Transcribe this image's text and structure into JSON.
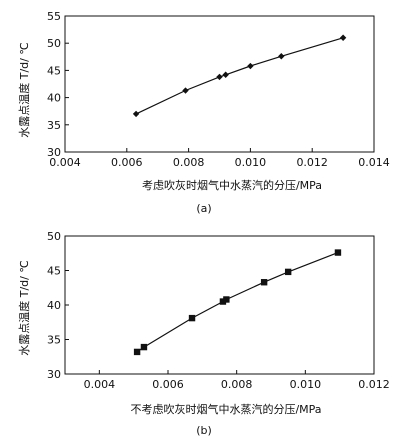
{
  "chart_data": [
    {
      "type": "line",
      "panel_label": "(a)",
      "xlabel": "考虑吹灰时烟气中水蒸汽的分压/MPa",
      "ylabel": "水露点温度 T/d/ ℃",
      "xlim": [
        0.004,
        0.014
      ],
      "ylim": [
        30,
        55
      ],
      "xticks": [
        "0.004",
        "0.006",
        "0.008",
        "0.010",
        "0.012",
        "0.014"
      ],
      "yticks": [
        "30",
        "35",
        "40",
        "45",
        "50",
        "55"
      ],
      "marker": "diamond",
      "series": [
        {
          "x": [
            0.0063,
            0.0079,
            0.009,
            0.0092,
            0.01,
            0.011,
            0.013
          ],
          "y": [
            37.0,
            41.3,
            43.8,
            44.2,
            45.8,
            47.6,
            51.0
          ]
        }
      ]
    },
    {
      "type": "line",
      "panel_label": "(b)",
      "xlabel": "不考虑吹灰时烟气中水蒸汽的分压/MPa",
      "ylabel": "水露点温度 T/d/ ℃",
      "xlim": [
        0.003,
        0.012
      ],
      "ylim": [
        30,
        50
      ],
      "xticks": [
        "0.004",
        "0.006",
        "0.008",
        "0.010",
        "0.012"
      ],
      "yticks": [
        "30",
        "35",
        "40",
        "45",
        "50"
      ],
      "marker": "square",
      "series": [
        {
          "x": [
            0.0051,
            0.0053,
            0.0067,
            0.0076,
            0.0077,
            0.0088,
            0.0095,
            0.01095
          ],
          "y": [
            33.2,
            33.9,
            38.1,
            40.5,
            40.8,
            43.3,
            44.8,
            47.6
          ]
        }
      ]
    }
  ],
  "colors": {
    "axis": "#111111",
    "line": "#111111",
    "marker": "#111111"
  }
}
